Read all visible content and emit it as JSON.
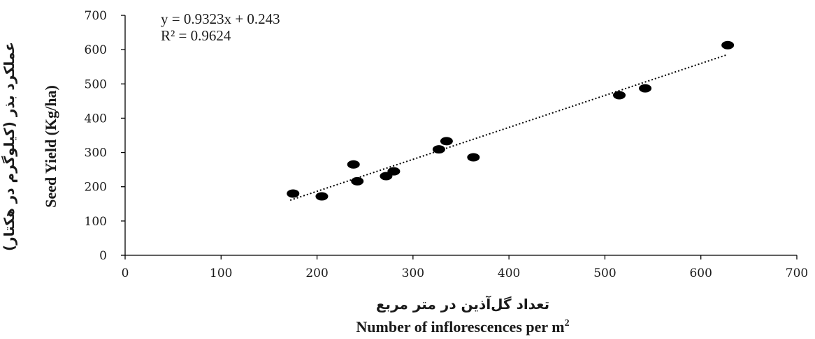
{
  "chart_data": {
    "type": "scatter",
    "title": "",
    "xlim": [
      0,
      700
    ],
    "ylim": [
      0,
      700
    ],
    "x_ticks": [
      "0",
      "100",
      "200",
      "300",
      "400",
      "500",
      "600",
      "700"
    ],
    "y_ticks": [
      "0",
      "100",
      "200",
      "300",
      "400",
      "500",
      "600",
      "700"
    ],
    "xlabel_fa": "تعداد گل‌آذین در متر مربع",
    "xlabel_en": "Number of inflorescences per m",
    "xlabel_en_sup": "2",
    "ylabel_fa": "عملکرد بذر (کیلوگرم در هکتار)",
    "ylabel_en": "Seed Yield (Kg/ha)",
    "equation": "y = 0.9323x + 0.243",
    "r_squared": "R² = 0.9624",
    "grid": false,
    "legend": "none",
    "marker_color": "#000000",
    "trendline": {
      "slope": 0.9323,
      "intercept": 0.243,
      "x_range": [
        172,
        627
      ],
      "style": "dotted"
    },
    "points": [
      {
        "x": 175,
        "y": 180
      },
      {
        "x": 205,
        "y": 172
      },
      {
        "x": 238,
        "y": 265
      },
      {
        "x": 242,
        "y": 216
      },
      {
        "x": 272,
        "y": 231
      },
      {
        "x": 280,
        "y": 245
      },
      {
        "x": 327,
        "y": 309
      },
      {
        "x": 335,
        "y": 333
      },
      {
        "x": 363,
        "y": 286
      },
      {
        "x": 515,
        "y": 467
      },
      {
        "x": 542,
        "y": 487
      },
      {
        "x": 628,
        "y": 613
      }
    ]
  }
}
